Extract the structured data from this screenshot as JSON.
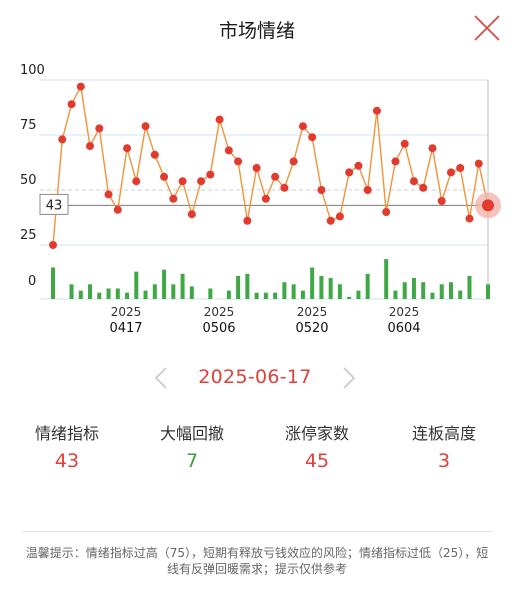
{
  "header": {
    "title": "市场情绪"
  },
  "chart_data": {
    "type": "line",
    "y_ticks": [
      "100",
      "75",
      "50",
      "25",
      "0"
    ],
    "ylim": [
      0,
      100
    ],
    "x_tick_labels": [
      {
        "year": "2025",
        "date": "0417"
      },
      {
        "year": "2025",
        "date": "0506"
      },
      {
        "year": "2025",
        "date": "0520"
      },
      {
        "year": "2025",
        "date": "0604"
      }
    ],
    "crosshair_value": "43",
    "sentiment": [
      25,
      73,
      89,
      97,
      70,
      78,
      48,
      41,
      69,
      54,
      79,
      66,
      56,
      46,
      54,
      39,
      54,
      57,
      82,
      68,
      63,
      36,
      60,
      46,
      56,
      51,
      63,
      79,
      74,
      50,
      36,
      38,
      58,
      61,
      50,
      86,
      40,
      63,
      71,
      54,
      51,
      69,
      45,
      58,
      60,
      37,
      62,
      43
    ],
    "volume_bars": [
      15,
      0,
      7,
      4,
      7,
      3,
      5,
      5,
      3,
      13,
      4,
      7,
      14,
      7,
      12,
      6,
      0,
      5,
      0,
      4,
      11,
      12,
      3,
      3,
      3,
      8,
      7,
      4,
      15,
      11,
      10,
      7,
      1,
      4,
      12,
      0,
      19,
      4,
      8,
      10,
      8,
      3,
      7,
      8,
      4,
      11,
      0,
      7
    ],
    "colors": {
      "line": "#f0943a",
      "point": "#e23a2e",
      "bar": "#3fa844",
      "grid": "#cfe3f0"
    }
  },
  "date_nav": {
    "date": "2025-06-17"
  },
  "stats": [
    {
      "label": "情绪指标",
      "value": "43",
      "color": "red"
    },
    {
      "label": "大幅回撤",
      "value": "7",
      "color": "green"
    },
    {
      "label": "涨停家数",
      "value": "45",
      "color": "red"
    },
    {
      "label": "连板高度",
      "value": "3",
      "color": "red"
    }
  ],
  "tip": "温馨提示：情绪指标过高（75），短期有释放亏钱效应的风险；情绪指标过低（25），短线有反弹回暖需求；提示仅供参考"
}
